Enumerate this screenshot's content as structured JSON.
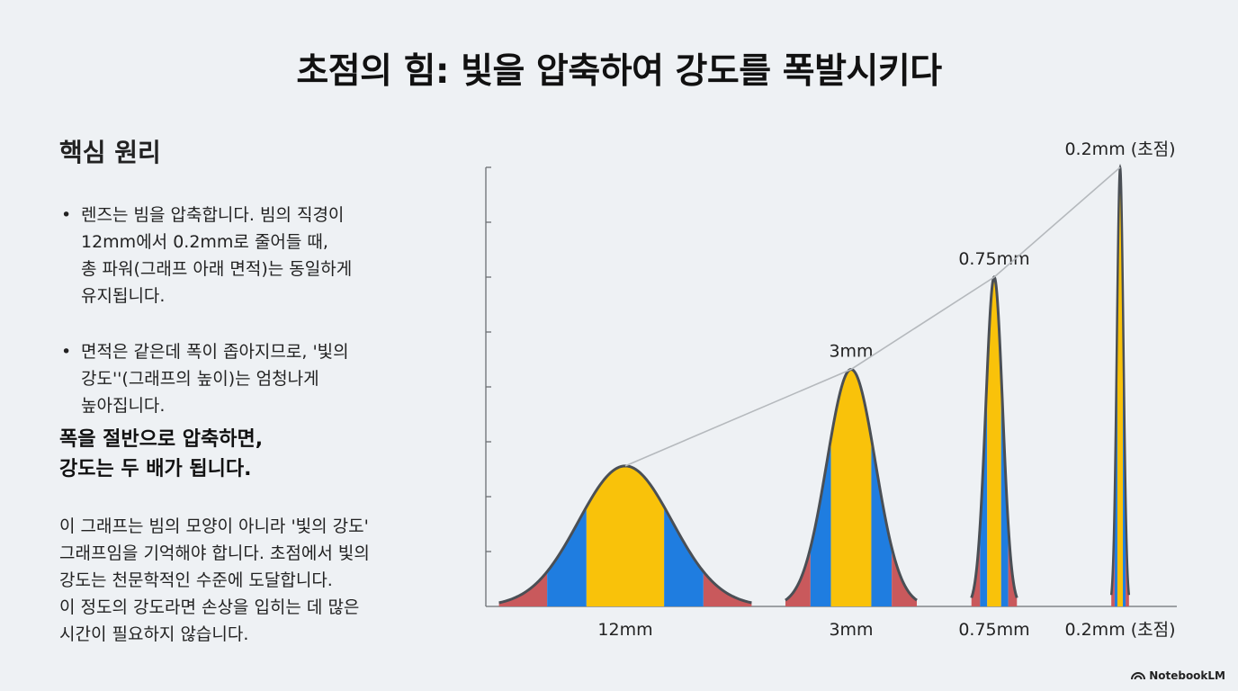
{
  "title": "초점의 힘: 빛을 압축하여 강도를 폭발시키다",
  "left_panel": {
    "heading": "핵심 원리",
    "bullets": [
      "렌즈는 빔을 압축합니다. 빔의 직경이\n12mm에서 0.2mm로 줄어들 때,\n총 파워(그래프 아래 면적)는 동일하게\n유지됩니다.",
      "면적은 같은데 폭이 좁아지므로, '빛의\n강도''(그래프의 높이)는 엄청나게\n높아집니다."
    ],
    "emphasis": "폭을 절반으로 압축하면,\n강도는 두 배가 됩니다.",
    "note": "이 그래프는 빔의 모양이 아니라 '빛의 강도'\n그래프임을 기억해야 합니다. 초점에서 빛의\n강도는 천문학적인 수준에 도달합니다.\n이 정도의 강도라면 손상을 입히는 데 많은\n시간이 필요하지 않습니다."
  },
  "chart_data": {
    "type": "area",
    "categories": [
      "12mm",
      "3mm",
      "0.75mm",
      "0.2mm (초점)"
    ],
    "peak_labels": [
      "",
      "3mm",
      "0.75mm",
      "0.2mm (초점)"
    ],
    "relative_peak_height": [
      0.32,
      0.54,
      0.75,
      1.0
    ],
    "relative_width": [
      1.0,
      0.52,
      0.18,
      0.07
    ],
    "y_ticks": 8,
    "colors": {
      "core": "#f9c20a",
      "middle": "#1f7de0",
      "edge": "#c9595c",
      "outline": "#4a4f55",
      "trend_line": "#b5b9bd"
    }
  },
  "brand": "NotebookLM"
}
